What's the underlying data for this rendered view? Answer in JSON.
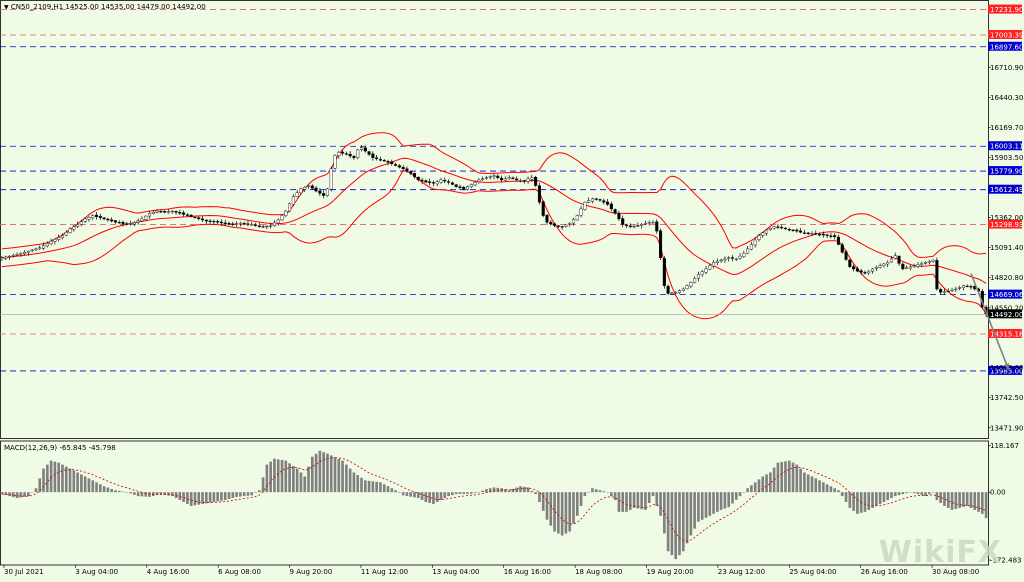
{
  "header": {
    "main_title": "CN50_2109,H1",
    "ohlc": "14525.00 14535.00 14479.00 14492.00",
    "macd_title": "MACD(12,26,9) -65.845 -45.798"
  },
  "watermark": "WikiFX",
  "colors": {
    "background": "#f0fbe6",
    "bollinger": "#ff0000",
    "support_line": "#0000cc",
    "resistance_line": "#e06060",
    "candle": "#000000",
    "macd_hist": "#808080",
    "macd_signal": "#c00000",
    "forecast_arrow": "#808080"
  },
  "chart_data": [
    {
      "type": "candlestick",
      "symbol": "CN50_2109",
      "timeframe": "H1",
      "x_ticks": [
        "30 Jul 2021",
        "3 Aug 04:00",
        "4 Aug 16:00",
        "6 Aug 08:00",
        "9 Aug 20:00",
        "11 Aug 12:00",
        "13 Aug 04:00",
        "16 Aug 16:00",
        "18 Aug 08:00",
        "19 Aug 20:00",
        "23 Aug 12:00",
        "25 Aug 04:00",
        "26 Aug 16:00",
        "30 Aug 08:00"
      ],
      "y_ticks": [
        16710.9,
        16440.3,
        16169.7,
        15903.5,
        15362.0,
        15091.4,
        14820.8,
        14550.2,
        14013.6,
        13742.5,
        13471.9
      ],
      "ylim": [
        13380,
        17300
      ],
      "horizontal_levels": [
        {
          "label": "17231.90",
          "value": 17231.9,
          "kind": "resistance"
        },
        {
          "label": "17003.39",
          "value": 17003.39,
          "kind": "resistance"
        },
        {
          "label": "16897.60",
          "value": 16897.6,
          "kind": "support"
        },
        {
          "label": "16003.11",
          "value": 16003.11,
          "kind": "support"
        },
        {
          "label": "15779.90",
          "value": 15779.9,
          "kind": "support"
        },
        {
          "label": "15612.49",
          "value": 15612.49,
          "kind": "support"
        },
        {
          "label": "15298.93",
          "value": 15298.93,
          "kind": "resistance"
        },
        {
          "label": "14669.06",
          "value": 14669.06,
          "kind": "support"
        },
        {
          "label": "14315.18",
          "value": 14315.18,
          "kind": "resistance"
        },
        {
          "label": "13983.00",
          "value": 13983.0,
          "kind": "support"
        }
      ],
      "current_price": {
        "label": "14492.00",
        "value": 14492.0
      },
      "price_path": [
        [
          0,
          15000
        ],
        [
          4,
          15030
        ],
        [
          7,
          15060
        ],
        [
          10,
          15090
        ],
        [
          13,
          15150
        ],
        [
          16,
          15200
        ],
        [
          18,
          15260
        ],
        [
          20,
          15300
        ],
        [
          22,
          15350
        ],
        [
          24,
          15380
        ],
        [
          26,
          15360
        ],
        [
          28,
          15340
        ],
        [
          30,
          15320
        ],
        [
          33,
          15300
        ],
        [
          35,
          15320
        ],
        [
          37,
          15350
        ],
        [
          39,
          15400
        ],
        [
          41,
          15420
        ],
        [
          43,
          15410
        ],
        [
          45,
          15420
        ],
        [
          48,
          15390
        ],
        [
          51,
          15360
        ],
        [
          54,
          15330
        ],
        [
          57,
          15320
        ],
        [
          60,
          15300
        ],
        [
          63,
          15310
        ],
        [
          66,
          15300
        ],
        [
          69,
          15280
        ],
        [
          71,
          15290
        ],
        [
          73,
          15340
        ],
        [
          75,
          15420
        ],
        [
          77,
          15550
        ],
        [
          79,
          15620
        ],
        [
          81,
          15650
        ],
        [
          83,
          15600
        ],
        [
          85,
          15560
        ],
        [
          86,
          15620
        ],
        [
          87,
          15800
        ],
        [
          88,
          15920
        ],
        [
          89,
          15950
        ],
        [
          91,
          15930
        ],
        [
          93,
          15900
        ],
        [
          94,
          15970
        ],
        [
          95,
          15990
        ],
        [
          96,
          15960
        ],
        [
          98,
          15900
        ],
        [
          100,
          15880
        ],
        [
          102,
          15860
        ],
        [
          104,
          15830
        ],
        [
          106,
          15800
        ],
        [
          108,
          15760
        ],
        [
          110,
          15700
        ],
        [
          112,
          15680
        ],
        [
          114,
          15670
        ],
        [
          116,
          15700
        ],
        [
          118,
          15680
        ],
        [
          120,
          15640
        ],
        [
          122,
          15620
        ],
        [
          124,
          15660
        ],
        [
          126,
          15700
        ],
        [
          128,
          15720
        ],
        [
          130,
          15740
        ],
        [
          132,
          15700
        ],
        [
          134,
          15720
        ],
        [
          136,
          15700
        ],
        [
          138,
          15690
        ],
        [
          139,
          15710
        ],
        [
          140,
          15720
        ],
        [
          141,
          15650
        ],
        [
          142,
          15500
        ],
        [
          143,
          15380
        ],
        [
          144,
          15320
        ],
        [
          146,
          15290
        ],
        [
          148,
          15280
        ],
        [
          150,
          15310
        ],
        [
          152,
          15380
        ],
        [
          154,
          15500
        ],
        [
          156,
          15530
        ],
        [
          158,
          15520
        ],
        [
          160,
          15480
        ],
        [
          162,
          15400
        ],
        [
          164,
          15300
        ],
        [
          166,
          15280
        ],
        [
          168,
          15290
        ],
        [
          170,
          15310
        ],
        [
          172,
          15320
        ],
        [
          173,
          15240
        ],
        [
          174,
          15000
        ],
        [
          175,
          14750
        ],
        [
          176,
          14680
        ],
        [
          178,
          14690
        ],
        [
          180,
          14720
        ],
        [
          182,
          14780
        ],
        [
          184,
          14850
        ],
        [
          186,
          14900
        ],
        [
          188,
          14960
        ],
        [
          190,
          14980
        ],
        [
          192,
          15000
        ],
        [
          194,
          14990
        ],
        [
          196,
          15040
        ],
        [
          198,
          15120
        ],
        [
          200,
          15200
        ],
        [
          202,
          15250
        ],
        [
          204,
          15280
        ],
        [
          206,
          15270
        ],
        [
          208,
          15250
        ],
        [
          210,
          15240
        ],
        [
          212,
          15220
        ],
        [
          214,
          15220
        ],
        [
          216,
          15210
        ],
        [
          218,
          15200
        ],
        [
          220,
          15190
        ],
        [
          222,
          15050
        ],
        [
          224,
          14920
        ],
        [
          226,
          14880
        ],
        [
          228,
          14860
        ],
        [
          230,
          14900
        ],
        [
          232,
          14930
        ],
        [
          234,
          14960
        ],
        [
          236,
          15020
        ],
        [
          237,
          14950
        ],
        [
          238,
          14900
        ],
        [
          240,
          14920
        ],
        [
          242,
          14940
        ],
        [
          244,
          14960
        ],
        [
          246,
          14980
        ],
        [
          247,
          14720
        ],
        [
          248,
          14690
        ],
        [
          250,
          14700
        ],
        [
          252,
          14720
        ],
        [
          254,
          14750
        ],
        [
          256,
          14740
        ],
        [
          258,
          14700
        ],
        [
          259,
          14560
        ],
        [
          260,
          14492
        ]
      ],
      "forecast_arrow": [
        [
          256,
          14860
        ],
        [
          266,
          13990
        ]
      ]
    },
    {
      "type": "macd",
      "name": "MACD(12,26,9)",
      "macd_value": -65.845,
      "signal_value": -45.798,
      "y_ticks": [
        118.167,
        0.0,
        -172.483
      ],
      "ylim": [
        -185,
        130
      ],
      "histogram_path": [
        [
          0,
          -5
        ],
        [
          4,
          -15
        ],
        [
          7,
          -10
        ],
        [
          9,
          10
        ],
        [
          11,
          60
        ],
        [
          13,
          80
        ],
        [
          15,
          75
        ],
        [
          18,
          60
        ],
        [
          21,
          45
        ],
        [
          24,
          30
        ],
        [
          27,
          15
        ],
        [
          30,
          5
        ],
        [
          33,
          0
        ],
        [
          36,
          -10
        ],
        [
          39,
          -12
        ],
        [
          42,
          -5
        ],
        [
          45,
          -10
        ],
        [
          48,
          -25
        ],
        [
          50,
          -35
        ],
        [
          53,
          -30
        ],
        [
          56,
          -25
        ],
        [
          59,
          -20
        ],
        [
          62,
          -12
        ],
        [
          66,
          -8
        ],
        [
          68,
          5
        ],
        [
          70,
          70
        ],
        [
          72,
          85
        ],
        [
          75,
          80
        ],
        [
          78,
          60
        ],
        [
          80,
          40
        ],
        [
          82,
          90
        ],
        [
          84,
          105
        ],
        [
          86,
          98
        ],
        [
          90,
          80
        ],
        [
          93,
          50
        ],
        [
          96,
          30
        ],
        [
          100,
          25
        ],
        [
          102,
          15
        ],
        [
          104,
          5
        ],
        [
          106,
          -8
        ],
        [
          110,
          -15
        ],
        [
          112,
          -25
        ],
        [
          114,
          -30
        ],
        [
          116,
          -20
        ],
        [
          118,
          -10
        ],
        [
          120,
          -5
        ],
        [
          124,
          -4
        ],
        [
          126,
          0
        ],
        [
          128,
          8
        ],
        [
          130,
          12
        ],
        [
          132,
          10
        ],
        [
          134,
          5
        ],
        [
          137,
          15
        ],
        [
          139,
          12
        ],
        [
          141,
          -5
        ],
        [
          142,
          -25
        ],
        [
          144,
          -70
        ],
        [
          146,
          -100
        ],
        [
          148,
          -110
        ],
        [
          150,
          -100
        ],
        [
          152,
          -60
        ],
        [
          154,
          -10
        ],
        [
          156,
          10
        ],
        [
          158,
          5
        ],
        [
          160,
          0
        ],
        [
          162,
          -20
        ],
        [
          163,
          -50
        ],
        [
          165,
          -50
        ],
        [
          167,
          -40
        ],
        [
          170,
          -45
        ],
        [
          172,
          -10
        ],
        [
          174,
          -60
        ],
        [
          176,
          -150
        ],
        [
          178,
          -170
        ],
        [
          180,
          -150
        ],
        [
          182,
          -110
        ],
        [
          184,
          -75
        ],
        [
          188,
          -55
        ],
        [
          190,
          -45
        ],
        [
          192,
          -38
        ],
        [
          195,
          -10
        ],
        [
          197,
          10
        ],
        [
          199,
          25
        ],
        [
          201,
          40
        ],
        [
          203,
          50
        ],
        [
          205,
          75
        ],
        [
          208,
          80
        ],
        [
          210,
          70
        ],
        [
          212,
          50
        ],
        [
          214,
          40
        ],
        [
          217,
          25
        ],
        [
          219,
          15
        ],
        [
          221,
          5
        ],
        [
          222,
          -10
        ],
        [
          224,
          -40
        ],
        [
          226,
          -55
        ],
        [
          228,
          -50
        ],
        [
          230,
          -40
        ],
        [
          232,
          -30
        ],
        [
          234,
          -20
        ],
        [
          236,
          -10
        ],
        [
          238,
          -5
        ],
        [
          240,
          0
        ],
        [
          242,
          -5
        ],
        [
          244,
          -10
        ],
        [
          246,
          0
        ],
        [
          247,
          -20
        ],
        [
          249,
          -35
        ],
        [
          251,
          -45
        ],
        [
          253,
          -40
        ],
        [
          255,
          -35
        ],
        [
          257,
          -45
        ],
        [
          259,
          -55
        ],
        [
          260,
          -66
        ]
      ]
    }
  ]
}
